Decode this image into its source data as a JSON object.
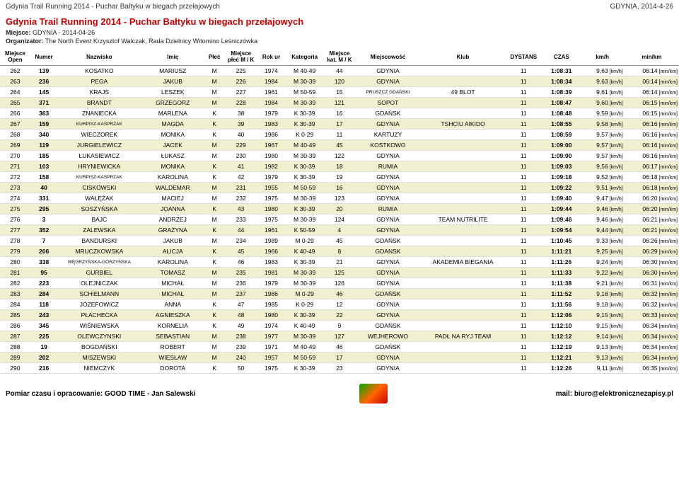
{
  "header": {
    "left": "Gdynia Trail Running 2014 - Puchar Bałtyku w biegach przełajowych",
    "right": "GDYNIA, 2014-4-26"
  },
  "title": "Gdynia Trail Running 2014 - Puchar Bałtyku w biegach przełajowych",
  "miejsce_label": "Miejsce:",
  "miejsce_value": "GDYNIA - 2014-04-26",
  "org_label": "Organizator:",
  "org_value": "The North Event Krzysztof Walczak, Rada Dzielnicy Witomino Leśniczówka",
  "columns": [
    "Miejsce Open",
    "Numer",
    "Nazwisko",
    "Imię",
    "Płeć",
    "Miejsce płeć M / K",
    "Rok ur",
    "Kategoria",
    "Miejsce kat. M / K",
    "Miejscowość",
    "Klub",
    "DYSTANS",
    "CZAS",
    "km/h",
    "min/km"
  ],
  "col_widths": [
    "40px",
    "36px",
    "110px",
    "84px",
    "26px",
    "44px",
    "36px",
    "52px",
    "40px",
    "88px",
    "110px",
    "50px",
    "50px",
    "58px",
    "72px"
  ],
  "rows": [
    [
      "262",
      "139",
      "KOSATKO",
      "MARIUSZ",
      "M",
      "225",
      "1974",
      "M 40-49",
      "44",
      "GDYNIA",
      "",
      "11",
      "1:08:31",
      "9,63",
      "06:14"
    ],
    [
      "263",
      "236",
      "PEGA",
      "JAKUB",
      "M",
      "226",
      "1984",
      "M 30-39",
      "120",
      "GDYNIA",
      "",
      "11",
      "1:08:34",
      "9,63",
      "06:14"
    ],
    [
      "264",
      "145",
      "KRAJS",
      "LESZEK",
      "M",
      "227",
      "1961",
      "M 50-59",
      "15",
      "PRUSZCZ GDAŃSKI",
      "49 BLOT",
      "11",
      "1:08:39",
      "9,61",
      "06:14"
    ],
    [
      "265",
      "371",
      "BRANDT",
      "GRZEGORZ",
      "M",
      "228",
      "1984",
      "M 30-39",
      "121",
      "SOPOT",
      "",
      "11",
      "1:08:47",
      "9,60",
      "06:15"
    ],
    [
      "266",
      "363",
      "ZNANIECKA",
      "MARLENA",
      "K",
      "38",
      "1979",
      "K 30-39",
      "16",
      "GDAŃSK",
      "",
      "11",
      "1:08:48",
      "9,59",
      "06:15"
    ],
    [
      "267",
      "159",
      "KURPISZ-KASPRZAK",
      "MAGDA",
      "K",
      "39",
      "1983",
      "K 30-39",
      "17",
      "GDYNIA",
      "TSHCIU AIKIDO",
      "11",
      "1:08:55",
      "9,58",
      "06:16"
    ],
    [
      "268",
      "340",
      "WIECZOREK",
      "MONIKA",
      "K",
      "40",
      "1986",
      "K 0-29",
      "11",
      "KARTUZY",
      "",
      "11",
      "1:08:59",
      "9,57",
      "06:16"
    ],
    [
      "269",
      "119",
      "JURGIELEWICZ",
      "JACEK",
      "M",
      "229",
      "1967",
      "M 40-49",
      "45",
      "KOSTKOWO",
      "",
      "11",
      "1:09:00",
      "9,57",
      "06:16"
    ],
    [
      "270",
      "185",
      "ŁUKASIEWICZ",
      "ŁUKASZ",
      "M",
      "230",
      "1980",
      "M 30-39",
      "122",
      "GDYNIA",
      "",
      "11",
      "1:09:00",
      "9,57",
      "06:16"
    ],
    [
      "271",
      "103",
      "HRYNIEWICKA",
      "MONIKA",
      "K",
      "41",
      "1982",
      "K 30-39",
      "18",
      "RUMIA",
      "",
      "11",
      "1:09:03",
      "9,56",
      "06:17"
    ],
    [
      "272",
      "158",
      "KURPISZ-KASPRZAK",
      "KAROLINA",
      "K",
      "42",
      "1979",
      "K 30-39",
      "19",
      "GDYNIA",
      "",
      "11",
      "1:09:18",
      "9,52",
      "06:18"
    ],
    [
      "273",
      "40",
      "CISKOWSKI",
      "WALDEMAR",
      "M",
      "231",
      "1955",
      "M 50-59",
      "16",
      "GDYNIA",
      "",
      "11",
      "1:09:22",
      "9,51",
      "06:18"
    ],
    [
      "274",
      "331",
      "WAŁĘŻAK",
      "MACIEJ",
      "M",
      "232",
      "1975",
      "M 30-39",
      "123",
      "GDYNIA",
      "",
      "11",
      "1:09:40",
      "9,47",
      "06:20"
    ],
    [
      "275",
      "295",
      "SOSZYŃSKA",
      "JOANNA",
      "K",
      "43",
      "1980",
      "K 30-39",
      "20",
      "RUMIA",
      "",
      "11",
      "1:09:44",
      "9,46",
      "06:20"
    ],
    [
      "276",
      "3",
      "BAJC",
      "ANDRZEJ",
      "M",
      "233",
      "1975",
      "M 30-39",
      "124",
      "GDYNIA",
      "TEAM NUTRILITE",
      "11",
      "1:09:46",
      "9,46",
      "06:21"
    ],
    [
      "277",
      "352",
      "ZALEWSKA",
      "GRAŻYNA",
      "K",
      "44",
      "1961",
      "K 50-59",
      "4",
      "GDYNIA",
      "",
      "11",
      "1:09:54",
      "9,44",
      "06:21"
    ],
    [
      "278",
      "7",
      "BANDURSKI",
      "JAKUB",
      "M",
      "234",
      "1989",
      "M 0-29",
      "45",
      "GDAŃSK",
      "",
      "11",
      "1:10:45",
      "9,33",
      "06:26"
    ],
    [
      "279",
      "206",
      "MRUCZKOWSKA",
      "ALICJA",
      "K",
      "45",
      "1966",
      "K 40-49",
      "8",
      "GDANSK",
      "",
      "11",
      "1:11:21",
      "9,25",
      "06:29"
    ],
    [
      "280",
      "338",
      "WĘGRZYŃSKA-GÓRZYŃSKA",
      "KAROLINA",
      "K",
      "46",
      "1983",
      "K 30-39",
      "21",
      "GDYNIA",
      "AKADEMIA BIEGANIA",
      "11",
      "1:11:26",
      "9,24",
      "06:30"
    ],
    [
      "281",
      "95",
      "GURBIEL",
      "TOMASZ",
      "M",
      "235",
      "1981",
      "M 30-39",
      "125",
      "GDYNIA",
      "",
      "11",
      "1:11:33",
      "9,22",
      "06:30"
    ],
    [
      "282",
      "223",
      "OLEJNICZAK",
      "MICHAŁ",
      "M",
      "236",
      "1979",
      "M 30-39",
      "126",
      "GDYNIA",
      "",
      "11",
      "1:11:38",
      "9,21",
      "06:31"
    ],
    [
      "283",
      "284",
      "SCHIELMANN",
      "MICHAŁ",
      "M",
      "237",
      "1986",
      "M 0-29",
      "46",
      "GDAŃSK",
      "",
      "11",
      "1:11:52",
      "9,18",
      "06:32"
    ],
    [
      "284",
      "118",
      "JÓZEFOWICZ",
      "ANNA",
      "K",
      "47",
      "1985",
      "K 0-29",
      "12",
      "GDYNIA",
      "",
      "11",
      "1:11:56",
      "9,18",
      "06:32"
    ],
    [
      "285",
      "243",
      "PŁACHECKA",
      "AGNIESZKA",
      "K",
      "48",
      "1980",
      "K 30-39",
      "22",
      "GDYNIA",
      "",
      "11",
      "1:12:06",
      "9,15",
      "06:33"
    ],
    [
      "286",
      "345",
      "WIŚNIEWSKA",
      "KORNELIA",
      "K",
      "49",
      "1974",
      "K 40-49",
      "9",
      "GDAŃSK",
      "",
      "11",
      "1:12:10",
      "9,15",
      "06:34"
    ],
    [
      "287",
      "225",
      "OLEWCZYNSKI",
      "SEBASTIAN",
      "M",
      "238",
      "1977",
      "M 30-39",
      "127",
      "WEJHEROWO",
      "PADŁ NA RYJ TEAM",
      "11",
      "1:12:12",
      "9,14",
      "06:34"
    ],
    [
      "288",
      "19",
      "BOGDAŃSKI",
      "ROBERT",
      "M",
      "239",
      "1971",
      "M 40-49",
      "46",
      "GDAŃSK",
      "",
      "11",
      "1:12:19",
      "9,13",
      "06:34"
    ],
    [
      "289",
      "202",
      "MISZEWSKI",
      "WIESŁAW",
      "M",
      "240",
      "1957",
      "M 50-59",
      "17",
      "GDYNIA",
      "",
      "11",
      "1:12:21",
      "9,13",
      "06:34"
    ],
    [
      "290",
      "216",
      "NIEMCZYK",
      "DOROTA",
      "K",
      "50",
      "1975",
      "K 30-39",
      "23",
      "GDYNIA",
      "",
      "11",
      "1:12:26",
      "9,11",
      "06:35"
    ]
  ],
  "kmh_unit": "[km/h]",
  "minkm_unit": "[min/km]",
  "footer": {
    "left": "Pomiar czasu i opracowanie: GOOD TIME - Jan Salewski",
    "right": "mail: biuro@elektronicznezapisy.pl"
  }
}
